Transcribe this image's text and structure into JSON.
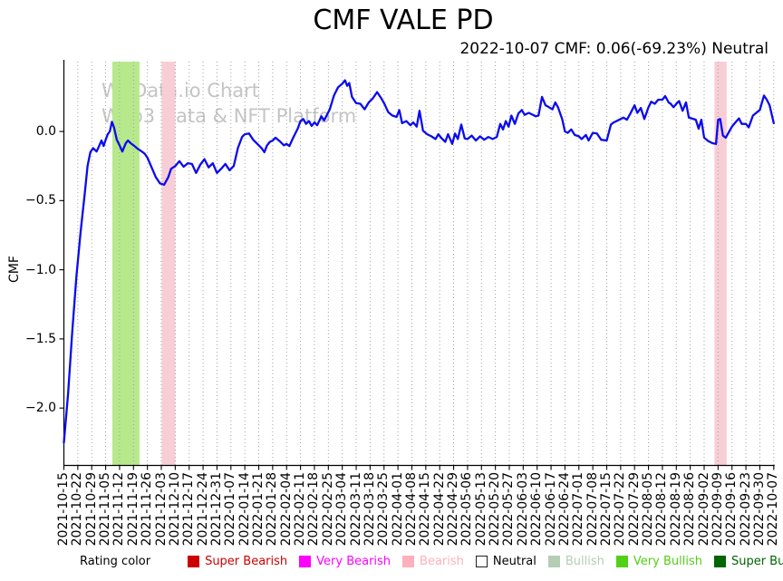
{
  "title": "CMF VALE PD",
  "subtitle": "2022-10-07 CMF: 0.06(-69.23%) Neutral",
  "watermark": {
    "line1": "W3Data.io Chart",
    "line2": "Web3 Data & NFT Platform"
  },
  "legend": {
    "label": "Rating color",
    "position": "bottom",
    "items": [
      {
        "name": "Super Bearish",
        "color": "#cc0000",
        "text_color": "#cc0000"
      },
      {
        "name": "Very Bearish",
        "color": "#ff00ff",
        "text_color": "#ff00ff"
      },
      {
        "name": "Bearish",
        "color": "#ffb0bc",
        "text_color": "#ffb0bc"
      },
      {
        "name": "Neutral",
        "color": "#ffffff",
        "text_color": "#000000",
        "border": "#222222"
      },
      {
        "name": "Bullish",
        "color": "#b5cdb5",
        "text_color": "#b5cdb5"
      },
      {
        "name": "Very Bullish",
        "color": "#52d017",
        "text_color": "#52d017"
      },
      {
        "name": "Super Bullish",
        "color": "#006400",
        "text_color": "#006400"
      }
    ]
  },
  "chart_data": {
    "type": "line",
    "title": "CMF VALE PD",
    "xlabel": "",
    "ylabel": "CMF",
    "line_color": "#0b0bee",
    "grid": "vertical-dotted",
    "grid_color": "#999999",
    "ylim": [
      -2.415,
      0.505
    ],
    "yticks": [
      0.0,
      -0.5,
      -1.0,
      -1.5,
      -2.0
    ],
    "x_tick_labels": [
      "2021-10-15",
      "2021-10-22",
      "2021-10-29",
      "2021-11-05",
      "2021-11-12",
      "2021-11-19",
      "2021-11-26",
      "2021-12-03",
      "2021-12-10",
      "2021-12-17",
      "2021-12-24",
      "2021-12-31",
      "2022-01-07",
      "2022-01-14",
      "2022-01-21",
      "2022-01-28",
      "2022-02-04",
      "2022-02-11",
      "2022-02-18",
      "2022-02-25",
      "2022-03-04",
      "2022-03-11",
      "2022-03-18",
      "2022-03-25",
      "2022-04-01",
      "2022-04-08",
      "2022-04-15",
      "2022-04-22",
      "2022-04-29",
      "2022-05-06",
      "2022-05-13",
      "2022-05-20",
      "2022-05-27",
      "2022-06-03",
      "2022-06-10",
      "2022-06-17",
      "2022-06-24",
      "2022-07-01",
      "2022-07-08",
      "2022-07-15",
      "2022-07-22",
      "2022-07-29",
      "2022-08-05",
      "2022-08-12",
      "2022-08-19",
      "2022-08-26",
      "2022-09-02",
      "2022-09-09",
      "2022-09-16",
      "2022-09-23",
      "2022-09-30",
      "2022-10-07"
    ],
    "bands": [
      {
        "from_index": 3.48,
        "to_index": 5.43,
        "color": "#b7e98c",
        "rating": "Very Bullish"
      },
      {
        "from_index": 7.03,
        "to_index": 8.01,
        "color": "#f8ced6",
        "rating": "Bearish"
      },
      {
        "from_index": 46.74,
        "to_index": 47.62,
        "color": "#f8ced6",
        "rating": "Bearish"
      }
    ],
    "last_point": {
      "date": "2022-10-07",
      "value": 0.06,
      "change_pct": -69.23,
      "rating": "Neutral"
    },
    "series": [
      {
        "name": "CMF",
        "points": [
          [
            0,
            -2.25
          ],
          [
            0.3,
            -1.9
          ],
          [
            0.6,
            -1.45
          ],
          [
            0.9,
            -1.05
          ],
          [
            1.2,
            -0.73
          ],
          [
            1.5,
            -0.45
          ],
          [
            1.7,
            -0.25
          ],
          [
            1.9,
            -0.15
          ],
          [
            2.1,
            -0.12
          ],
          [
            2.35,
            -0.145
          ],
          [
            2.55,
            -0.1
          ],
          [
            2.7,
            -0.065
          ],
          [
            2.85,
            -0.105
          ],
          [
            3.0,
            -0.06
          ],
          [
            3.15,
            -0.02
          ],
          [
            3.3,
            0.0
          ],
          [
            3.45,
            0.07
          ],
          [
            3.6,
            0.03
          ],
          [
            3.8,
            -0.06
          ],
          [
            4.0,
            -0.1
          ],
          [
            4.2,
            -0.145
          ],
          [
            4.45,
            -0.085
          ],
          [
            4.6,
            -0.065
          ],
          [
            4.8,
            -0.085
          ],
          [
            5.0,
            -0.1
          ],
          [
            5.3,
            -0.125
          ],
          [
            5.6,
            -0.145
          ],
          [
            5.8,
            -0.16
          ],
          [
            6.0,
            -0.19
          ],
          [
            6.3,
            -0.26
          ],
          [
            6.6,
            -0.33
          ],
          [
            6.9,
            -0.375
          ],
          [
            7.2,
            -0.385
          ],
          [
            7.5,
            -0.33
          ],
          [
            7.7,
            -0.27
          ],
          [
            8.0,
            -0.25
          ],
          [
            8.3,
            -0.215
          ],
          [
            8.6,
            -0.255
          ],
          [
            8.9,
            -0.23
          ],
          [
            9.2,
            -0.235
          ],
          [
            9.5,
            -0.3
          ],
          [
            9.8,
            -0.24
          ],
          [
            10.1,
            -0.2
          ],
          [
            10.4,
            -0.26
          ],
          [
            10.7,
            -0.23
          ],
          [
            11.0,
            -0.3
          ],
          [
            11.3,
            -0.27
          ],
          [
            11.6,
            -0.235
          ],
          [
            11.9,
            -0.28
          ],
          [
            12.2,
            -0.25
          ],
          [
            12.5,
            -0.12
          ],
          [
            12.8,
            -0.04
          ],
          [
            13.0,
            -0.02
          ],
          [
            13.3,
            -0.015
          ],
          [
            13.6,
            -0.06
          ],
          [
            13.9,
            -0.09
          ],
          [
            14.2,
            -0.12
          ],
          [
            14.4,
            -0.15
          ],
          [
            14.6,
            -0.1
          ],
          [
            14.8,
            -0.075
          ],
          [
            15.0,
            -0.065
          ],
          [
            15.2,
            -0.045
          ],
          [
            15.5,
            -0.07
          ],
          [
            15.8,
            -0.1
          ],
          [
            16.0,
            -0.09
          ],
          [
            16.2,
            -0.105
          ],
          [
            16.5,
            -0.04
          ],
          [
            16.8,
            0.02
          ],
          [
            17.0,
            0.075
          ],
          [
            17.2,
            0.09
          ],
          [
            17.4,
            0.055
          ],
          [
            17.6,
            0.075
          ],
          [
            17.8,
            0.04
          ],
          [
            18.0,
            0.065
          ],
          [
            18.2,
            0.045
          ],
          [
            18.5,
            0.11
          ],
          [
            18.7,
            0.08
          ],
          [
            18.9,
            0.12
          ],
          [
            19.1,
            0.16
          ],
          [
            19.4,
            0.26
          ],
          [
            19.7,
            0.32
          ],
          [
            20.0,
            0.345
          ],
          [
            20.2,
            0.37
          ],
          [
            20.35,
            0.33
          ],
          [
            20.5,
            0.35
          ],
          [
            20.7,
            0.25
          ],
          [
            21.0,
            0.205
          ],
          [
            21.3,
            0.2
          ],
          [
            21.6,
            0.16
          ],
          [
            21.9,
            0.21
          ],
          [
            22.2,
            0.24
          ],
          [
            22.5,
            0.285
          ],
          [
            22.8,
            0.24
          ],
          [
            23.0,
            0.205
          ],
          [
            23.3,
            0.14
          ],
          [
            23.6,
            0.115
          ],
          [
            23.9,
            0.105
          ],
          [
            24.1,
            0.155
          ],
          [
            24.3,
            0.06
          ],
          [
            24.6,
            0.075
          ],
          [
            24.9,
            0.045
          ],
          [
            25.1,
            0.065
          ],
          [
            25.35,
            0.035
          ],
          [
            25.55,
            0.15
          ],
          [
            25.8,
            0.005
          ],
          [
            26.1,
            -0.02
          ],
          [
            26.4,
            -0.035
          ],
          [
            26.7,
            -0.055
          ],
          [
            26.9,
            -0.02
          ],
          [
            27.1,
            -0.045
          ],
          [
            27.4,
            -0.075
          ],
          [
            27.6,
            -0.02
          ],
          [
            27.9,
            -0.09
          ],
          [
            28.1,
            -0.015
          ],
          [
            28.3,
            -0.055
          ],
          [
            28.55,
            0.05
          ],
          [
            28.8,
            -0.05
          ],
          [
            29.0,
            -0.055
          ],
          [
            29.3,
            -0.03
          ],
          [
            29.6,
            -0.065
          ],
          [
            29.9,
            -0.035
          ],
          [
            30.2,
            -0.06
          ],
          [
            30.5,
            -0.04
          ],
          [
            30.8,
            -0.055
          ],
          [
            31.1,
            -0.04
          ],
          [
            31.35,
            0.055
          ],
          [
            31.55,
            0.015
          ],
          [
            31.75,
            0.075
          ],
          [
            31.95,
            0.035
          ],
          [
            32.15,
            0.115
          ],
          [
            32.4,
            0.055
          ],
          [
            32.65,
            0.13
          ],
          [
            32.9,
            0.155
          ],
          [
            33.1,
            0.12
          ],
          [
            33.4,
            0.135
          ],
          [
            33.6,
            0.125
          ],
          [
            33.9,
            0.11
          ],
          [
            34.1,
            0.115
          ],
          [
            34.35,
            0.25
          ],
          [
            34.6,
            0.19
          ],
          [
            34.85,
            0.175
          ],
          [
            35.1,
            0.16
          ],
          [
            35.3,
            0.21
          ],
          [
            35.5,
            0.175
          ],
          [
            35.8,
            0.09
          ],
          [
            36.0,
            0.0
          ],
          [
            36.2,
            -0.01
          ],
          [
            36.45,
            0.015
          ],
          [
            36.7,
            -0.025
          ],
          [
            37.0,
            -0.035
          ],
          [
            37.2,
            -0.055
          ],
          [
            37.5,
            -0.025
          ],
          [
            37.7,
            -0.065
          ],
          [
            38.0,
            -0.01
          ],
          [
            38.3,
            -0.015
          ],
          [
            38.6,
            -0.06
          ],
          [
            39.0,
            -0.065
          ],
          [
            39.3,
            0.05
          ],
          [
            39.5,
            0.065
          ],
          [
            39.8,
            0.08
          ],
          [
            40.0,
            0.09
          ],
          [
            40.2,
            0.1
          ],
          [
            40.45,
            0.085
          ],
          [
            40.7,
            0.13
          ],
          [
            41.0,
            0.19
          ],
          [
            41.2,
            0.135
          ],
          [
            41.45,
            0.17
          ],
          [
            41.7,
            0.09
          ],
          [
            42.0,
            0.175
          ],
          [
            42.2,
            0.215
          ],
          [
            42.45,
            0.2
          ],
          [
            42.7,
            0.23
          ],
          [
            43.0,
            0.23
          ],
          [
            43.2,
            0.256
          ],
          [
            43.45,
            0.21
          ],
          [
            43.6,
            0.2
          ],
          [
            43.8,
            0.175
          ],
          [
            44.0,
            0.2
          ],
          [
            44.2,
            0.22
          ],
          [
            44.45,
            0.15
          ],
          [
            44.7,
            0.21
          ],
          [
            44.9,
            0.1
          ],
          [
            45.1,
            0.095
          ],
          [
            45.4,
            0.085
          ],
          [
            45.6,
            0.02
          ],
          [
            45.8,
            0.085
          ],
          [
            46.0,
            -0.045
          ],
          [
            46.3,
            -0.07
          ],
          [
            46.6,
            -0.085
          ],
          [
            46.85,
            -0.09
          ],
          [
            47.0,
            0.085
          ],
          [
            47.15,
            0.09
          ],
          [
            47.35,
            -0.03
          ],
          [
            47.55,
            -0.045
          ],
          [
            47.8,
            0.0
          ],
          [
            48.0,
            0.035
          ],
          [
            48.2,
            0.06
          ],
          [
            48.5,
            0.095
          ],
          [
            48.7,
            0.055
          ],
          [
            49.0,
            0.055
          ],
          [
            49.2,
            0.03
          ],
          [
            49.5,
            0.115
          ],
          [
            49.8,
            0.14
          ],
          [
            50.0,
            0.155
          ],
          [
            50.3,
            0.26
          ],
          [
            50.5,
            0.23
          ],
          [
            50.7,
            0.19
          ],
          [
            51.0,
            0.06
          ]
        ]
      }
    ]
  }
}
